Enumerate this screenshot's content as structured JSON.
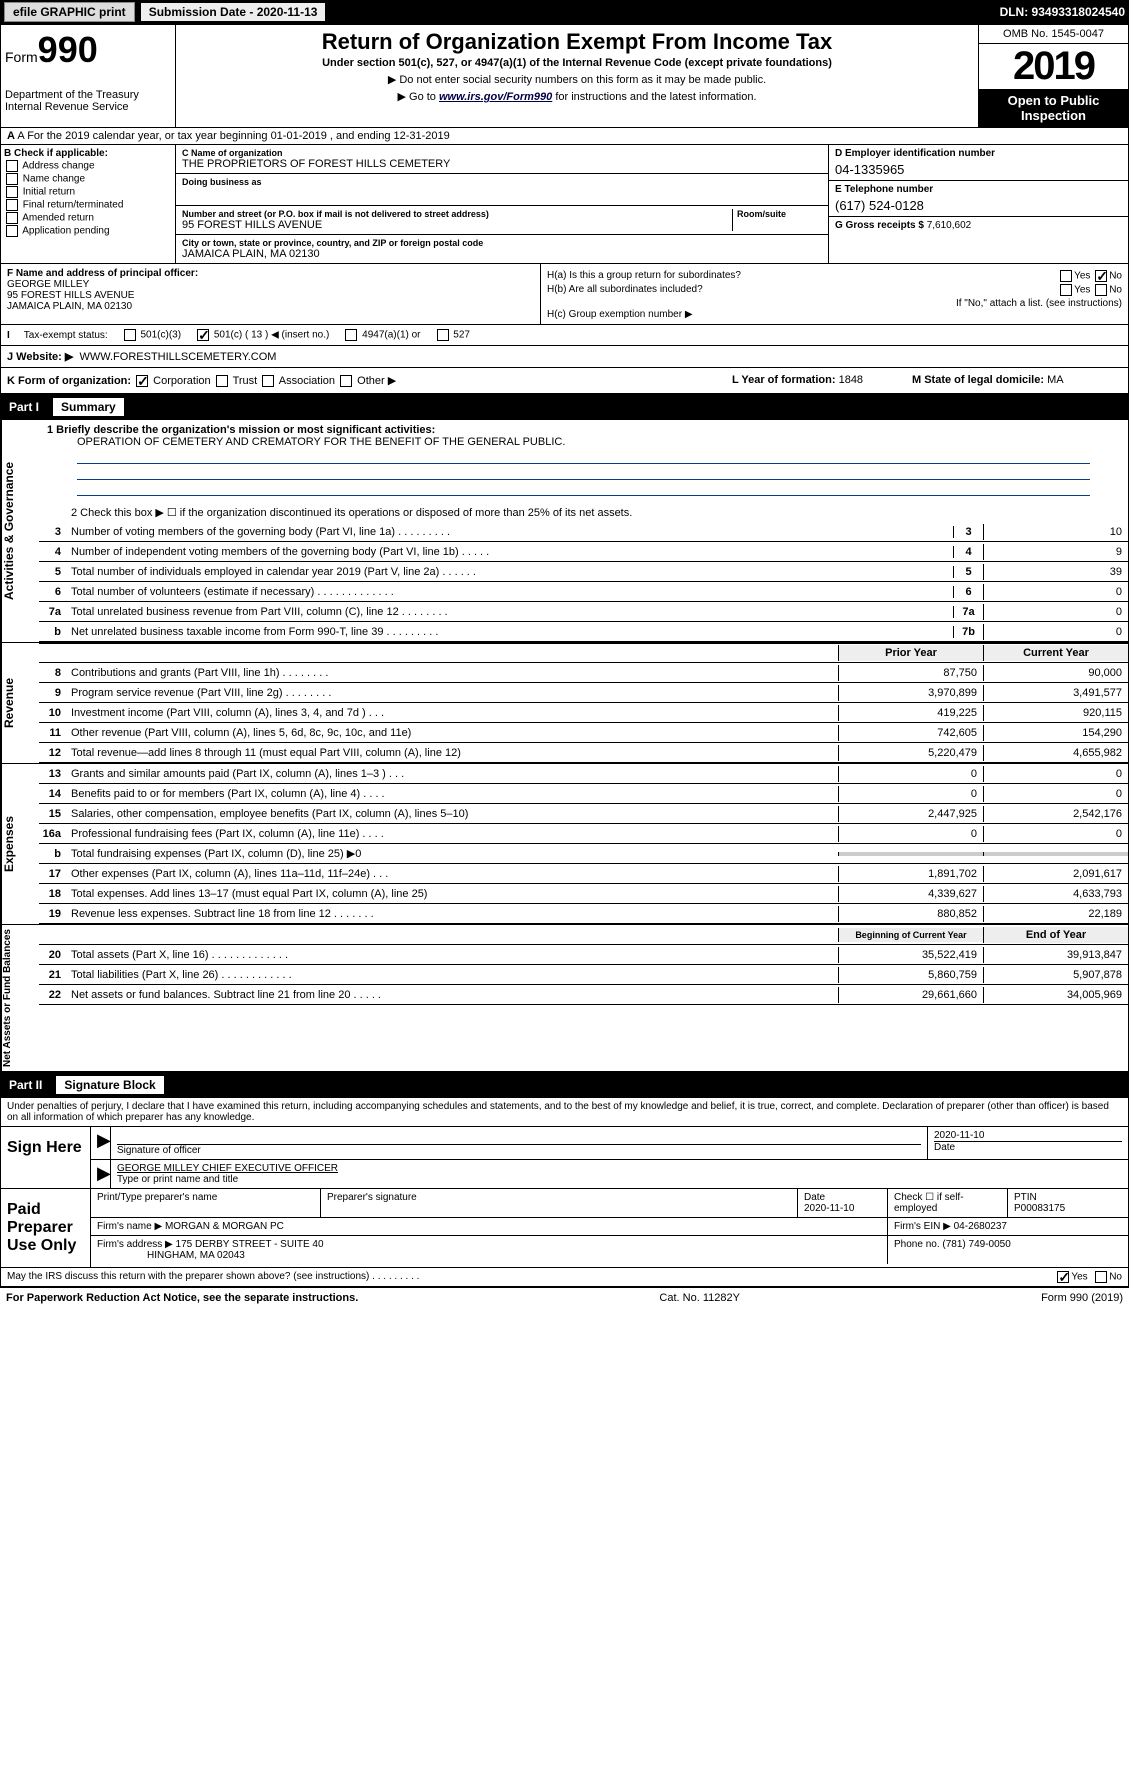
{
  "top": {
    "efile": "efile GRAPHIC print",
    "submission": "Submission Date - 2020-11-13",
    "dln": "DLN: 93493318024540"
  },
  "header": {
    "form": "Form",
    "formnum": "990",
    "title": "Return of Organization Exempt From Income Tax",
    "sub": "Under section 501(c), 527, or 4947(a)(1) of the Internal Revenue Code (except private foundations)",
    "note1": "▶ Do not enter social security numbers on this form as it may be made public.",
    "note2_pre": "▶ Go to ",
    "note2_link": "www.irs.gov/Form990",
    "note2_post": " for instructions and the latest information.",
    "dept": "Department of the Treasury\nInternal Revenue Service",
    "omb": "OMB No. 1545-0047",
    "year": "2019",
    "open": "Open to Public Inspection"
  },
  "rowA": "A For the 2019 calendar year, or tax year beginning 01-01-2019   , and ending 12-31-2019",
  "B": {
    "lbl": "B Check if applicable:",
    "opts": [
      "Address change",
      "Name change",
      "Initial return",
      "Final return/terminated",
      "Amended return",
      "Application pending"
    ]
  },
  "C": {
    "name_lbl": "C Name of organization",
    "name": "THE PROPRIETORS OF FOREST HILLS CEMETERY",
    "dba_lbl": "Doing business as",
    "addr_lbl": "Number and street (or P.O. box if mail is not delivered to street address)",
    "room_lbl": "Room/suite",
    "addr": "95 FOREST HILLS AVENUE",
    "city_lbl": "City or town, state or province, country, and ZIP or foreign postal code",
    "city": "JAMAICA PLAIN, MA  02130"
  },
  "D": {
    "lbl": "D Employer identification number",
    "val": "04-1335965"
  },
  "E": {
    "lbl": "E Telephone number",
    "val": "(617) 524-0128"
  },
  "G": {
    "lbl": "G Gross receipts $",
    "val": "7,610,602"
  },
  "F": {
    "lbl": "F  Name and address of principal officer:",
    "name": "GEORGE MILLEY",
    "addr1": "95 FOREST HILLS AVENUE",
    "addr2": "JAMAICA PLAIN, MA  02130"
  },
  "H": {
    "a": "H(a)  Is this a group return for subordinates?",
    "b": "H(b)  Are all subordinates included?",
    "b_note": "If \"No,\" attach a list. (see instructions)",
    "c": "H(c)  Group exemption number ▶"
  },
  "tax": {
    "lbl": "Tax-exempt status:",
    "c3": "501(c)(3)",
    "c": "501(c) ( 13 ) ◀ (insert no.)",
    "a1": "4947(a)(1) or",
    "527": "527"
  },
  "J": {
    "lbl": "J   Website: ▶",
    "val": "WWW.FORESTHILLSCEMETERY.COM"
  },
  "K": {
    "lbl": "K Form of organization:",
    "opts": [
      "Corporation",
      "Trust",
      "Association",
      "Other ▶"
    ]
  },
  "L": {
    "lbl": "L Year of formation:",
    "val": "1848"
  },
  "M": {
    "lbl": "M State of legal domicile:",
    "val": "MA"
  },
  "part1": {
    "hdr": "Part I",
    "title": "Summary"
  },
  "summary": {
    "q1": "1  Briefly describe the organization's mission or most significant activities:",
    "mission": "OPERATION OF CEMETERY AND CREMATORY FOR THE BENEFIT OF THE GENERAL PUBLIC.",
    "q2": "2   Check this box ▶ ☐  if the organization discontinued its operations or disposed of more than 25% of its net assets.",
    "lines": [
      {
        "n": "3",
        "t": "Number of voting members of the governing body (Part VI, line 1a)   .    .    .    .    .    .    .    .    .",
        "c": "3",
        "v": "10"
      },
      {
        "n": "4",
        "t": "Number of independent voting members of the governing body (Part VI, line 1b)  .    .    .    .    .",
        "c": "4",
        "v": "9"
      },
      {
        "n": "5",
        "t": "Total number of individuals employed in calendar year 2019 (Part V, line 2a)   .    .    .    .    .    .",
        "c": "5",
        "v": "39"
      },
      {
        "n": "6",
        "t": "Total number of volunteers (estimate if necessary)   .    .    .    .    .    .    .    .    .    .    .    .    .",
        "c": "6",
        "v": "0"
      },
      {
        "n": "7a",
        "t": "Total unrelated business revenue from Part VIII, column (C), line 12   .    .    .    .    .    .    .    .",
        "c": "7a",
        "v": "0"
      },
      {
        "n": "b",
        "t": "Net unrelated business taxable income from Form 990-T, line 39    .    .    .    .    .    .    .    .    .",
        "c": "7b",
        "v": "0"
      }
    ],
    "prior": "Prior Year",
    "current": "Current Year",
    "rev": [
      {
        "n": "8",
        "t": "Contributions and grants (Part VIII, line 1h)   .     .     .     .     .     .     .     .",
        "p": "87,750",
        "c": "90,000"
      },
      {
        "n": "9",
        "t": "Program service revenue (Part VIII, line 2g)   .     .     .     .     .     .     .     .",
        "p": "3,970,899",
        "c": "3,491,577"
      },
      {
        "n": "10",
        "t": "Investment income (Part VIII, column (A), lines 3, 4, and 7d )   .     .     .",
        "p": "419,225",
        "c": "920,115"
      },
      {
        "n": "11",
        "t": "Other revenue (Part VIII, column (A), lines 5, 6d, 8c, 9c, 10c, and 11e)",
        "p": "742,605",
        "c": "154,290"
      },
      {
        "n": "12",
        "t": "Total revenue—add lines 8 through 11 (must equal Part VIII, column (A), line 12)",
        "p": "5,220,479",
        "c": "4,655,982"
      }
    ],
    "exp": [
      {
        "n": "13",
        "t": "Grants and similar amounts paid (Part IX, column (A), lines 1–3 )   .     .     .",
        "p": "0",
        "c": "0"
      },
      {
        "n": "14",
        "t": "Benefits paid to or for members (Part IX, column (A), line 4)  .     .     .     .",
        "p": "0",
        "c": "0"
      },
      {
        "n": "15",
        "t": "Salaries, other compensation, employee benefits (Part IX, column (A), lines 5–10)",
        "p": "2,447,925",
        "c": "2,542,176"
      },
      {
        "n": "16a",
        "t": "Professional fundraising fees (Part IX, column (A), line 11e)   .     .     .     .",
        "p": "0",
        "c": "0"
      },
      {
        "n": "b",
        "t": "Total fundraising expenses (Part IX, column (D), line 25) ▶0",
        "p": "",
        "c": "",
        "shaded": true
      },
      {
        "n": "17",
        "t": "Other expenses (Part IX, column (A), lines 11a–11d, 11f–24e)   .     .     .",
        "p": "1,891,702",
        "c": "2,091,617"
      },
      {
        "n": "18",
        "t": "Total expenses. Add lines 13–17 (must equal Part IX, column (A), line 25)",
        "p": "4,339,627",
        "c": "4,633,793"
      },
      {
        "n": "19",
        "t": "Revenue less expenses. Subtract line 18 from line 12    .     .     .     .     .     .     .",
        "p": "880,852",
        "c": "22,189"
      }
    ],
    "boy": "Beginning of Current Year",
    "eoy": "End of Year",
    "net": [
      {
        "n": "20",
        "t": "Total assets (Part X, line 16)   .     .     .     .     .     .     .     .     .     .     .     .     .",
        "p": "35,522,419",
        "c": "39,913,847"
      },
      {
        "n": "21",
        "t": "Total liabilities (Part X, line 26)    .     .     .     .     .     .     .     .     .     .     .     .",
        "p": "5,860,759",
        "c": "5,907,878"
      },
      {
        "n": "22",
        "t": "Net assets or fund balances. Subtract line 21 from line 20   .     .     .     .     .",
        "p": "29,661,660",
        "c": "34,005,969"
      }
    ]
  },
  "sidelabels": {
    "gov": "Activities & Governance",
    "rev": "Revenue",
    "exp": "Expenses",
    "net": "Net Assets or Fund Balances"
  },
  "part2": {
    "hdr": "Part II",
    "title": "Signature Block"
  },
  "sig": {
    "text": "Under penalties of perjury, I declare that I have examined this return, including accompanying schedules and statements, and to the best of my knowledge and belief, it is true, correct, and complete. Declaration of preparer (other than officer) is based on all information of which preparer has any knowledge.",
    "sign_here": "Sign Here",
    "sig_officer": "Signature of officer",
    "date1": "2020-11-10",
    "date_lbl": "Date",
    "name_title": "GEORGE MILLEY CHIEF EXECUTIVE OFFICER",
    "name_lbl": "Type or print name and title",
    "paid": "Paid Preparer Use Only",
    "prep_name_lbl": "Print/Type preparer's name",
    "prep_sig_lbl": "Preparer's signature",
    "date2": "2020-11-10",
    "check_self": "Check ☐ if self-employed",
    "ptin_lbl": "PTIN",
    "ptin": "P00083175",
    "firm_name_lbl": "Firm's name    ▶",
    "firm_name": "MORGAN & MORGAN PC",
    "firm_ein_lbl": "Firm's EIN ▶",
    "firm_ein": "04-2680237",
    "firm_addr_lbl": "Firm's address ▶",
    "firm_addr1": "175 DERBY STREET - SUITE 40",
    "firm_addr2": "HINGHAM, MA  02043",
    "phone_lbl": "Phone no.",
    "phone": "(781) 749-0050",
    "discuss": "May the IRS discuss this return with the preparer shown above? (see instructions)    .     .     .     .     .     .     .     .     .",
    "yes": "Yes",
    "no": "No"
  },
  "footer": {
    "left": "For Paperwork Reduction Act Notice, see the separate instructions.",
    "mid": "Cat. No. 11282Y",
    "right": "Form 990 (2019)"
  },
  "colors": {
    "blue": "#004080"
  }
}
